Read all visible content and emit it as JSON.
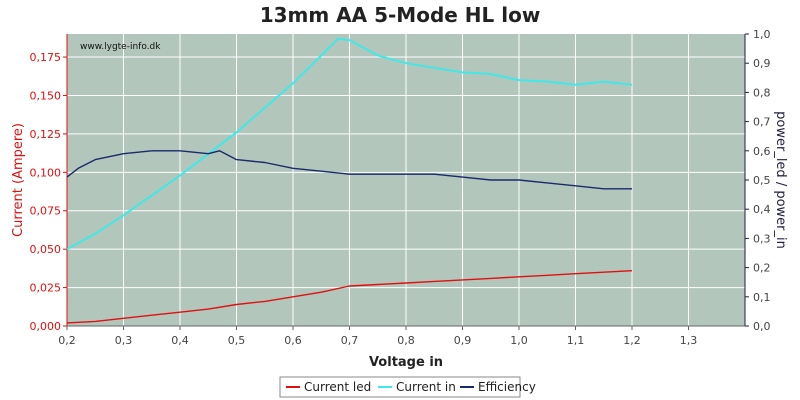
{
  "chart_data": {
    "type": "line",
    "title": "13mm AA 5-Mode HL low",
    "watermark": "www.lygte-info.dk",
    "xlabel": "Voltage in",
    "ylabel_left": "Current (Ampere)",
    "ylabel_right": "power_led / power_in",
    "xlim": [
      0.2,
      1.4
    ],
    "ylim_left": [
      0,
      0.19
    ],
    "ylim_right": [
      0,
      1.0
    ],
    "x_ticks": [
      "0,2",
      "0,3",
      "0,4",
      "0,5",
      "0,6",
      "0,7",
      "0,8",
      "0,9",
      "1,0",
      "1,1",
      "1,2",
      "1,3"
    ],
    "y_left_ticks": [
      "0,000",
      "0,025",
      "0,050",
      "0,075",
      "0,100",
      "0,125",
      "0,150",
      "0,175"
    ],
    "y_right_ticks": [
      "0,0",
      "0,1",
      "0,2",
      "0,3",
      "0,4",
      "0,5",
      "0,6",
      "0,7",
      "0,8",
      "0,9",
      "1,0"
    ],
    "grid": true,
    "legend_position": "bottom",
    "colors": {
      "plot_bg": "#b3c6bc",
      "grid": "#ffffff",
      "left_axis": "#e01010",
      "right_axis": "#222244",
      "current_led": "#e01010",
      "current_in": "#40e8e8",
      "efficiency": "#1a2a6c"
    },
    "series": [
      {
        "name": "Current led",
        "axis": "left",
        "x": [
          0.2,
          0.25,
          0.3,
          0.35,
          0.4,
          0.45,
          0.5,
          0.55,
          0.6,
          0.65,
          0.7,
          0.75,
          0.8,
          0.85,
          0.9,
          0.95,
          1.0,
          1.05,
          1.1,
          1.15,
          1.2
        ],
        "values": [
          0.002,
          0.003,
          0.005,
          0.007,
          0.009,
          0.011,
          0.014,
          0.016,
          0.019,
          0.022,
          0.026,
          0.027,
          0.028,
          0.029,
          0.03,
          0.031,
          0.032,
          0.033,
          0.034,
          0.035,
          0.036
        ]
      },
      {
        "name": "Current in",
        "axis": "left",
        "x": [
          0.2,
          0.25,
          0.3,
          0.35,
          0.4,
          0.45,
          0.5,
          0.55,
          0.6,
          0.65,
          0.68,
          0.7,
          0.75,
          0.8,
          0.85,
          0.9,
          0.95,
          1.0,
          1.05,
          1.1,
          1.15,
          1.2
        ],
        "values": [
          0.05,
          0.06,
          0.072,
          0.085,
          0.098,
          0.112,
          0.126,
          0.142,
          0.158,
          0.176,
          0.187,
          0.186,
          0.176,
          0.171,
          0.168,
          0.165,
          0.164,
          0.16,
          0.159,
          0.157,
          0.159,
          0.157
        ]
      },
      {
        "name": "Efficiency",
        "axis": "right",
        "x": [
          0.2,
          0.22,
          0.25,
          0.3,
          0.35,
          0.4,
          0.45,
          0.47,
          0.5,
          0.55,
          0.6,
          0.65,
          0.7,
          0.75,
          0.8,
          0.85,
          0.9,
          0.95,
          1.0,
          1.05,
          1.1,
          1.15,
          1.2
        ],
        "values": [
          0.51,
          0.54,
          0.57,
          0.59,
          0.6,
          0.6,
          0.59,
          0.6,
          0.57,
          0.56,
          0.54,
          0.53,
          0.52,
          0.52,
          0.52,
          0.52,
          0.51,
          0.5,
          0.5,
          0.49,
          0.48,
          0.47,
          0.47
        ]
      }
    ]
  }
}
